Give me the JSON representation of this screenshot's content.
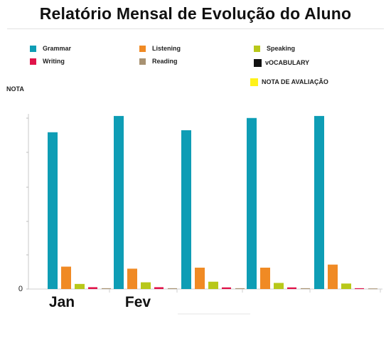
{
  "title": "Relatório Mensal de Evolução do Aluno",
  "chart_data": {
    "type": "bar",
    "title": "Relatório Mensal de Evolução do Aluno",
    "ylabel": "NOTA",
    "xlabel": "",
    "y_tick_labels": [
      "0"
    ],
    "ylim": [
      0,
      10
    ],
    "grid": false,
    "legend_position": "top",
    "categories": [
      "Jan",
      "Fev",
      "",
      "",
      ""
    ],
    "series": [
      {
        "name": "Grammar",
        "color": "#0e9db5",
        "values": [
          7.7,
          8.5,
          7.8,
          8.4,
          8.5
        ]
      },
      {
        "name": "Listening",
        "color": "#f08a24",
        "values": [
          1.1,
          1.0,
          1.05,
          1.05,
          1.2
        ]
      },
      {
        "name": "Speaking",
        "color": "#b8c81a",
        "values": [
          0.25,
          0.33,
          0.36,
          0.3,
          0.27
        ]
      },
      {
        "name": "Writing",
        "color": "#e0144a",
        "values": [
          0.09,
          0.09,
          0.08,
          0.08,
          0.04
        ]
      },
      {
        "name": "Reading",
        "color": "#a89272",
        "values": [
          0.04,
          0.04,
          0.04,
          0.04,
          0.03
        ]
      }
    ],
    "extra_legend": [
      {
        "name": "vOCABULARY",
        "color": "#111111"
      },
      {
        "name": "NOTA DE AVALIAÇÃO",
        "color": "#fff21a"
      }
    ]
  }
}
